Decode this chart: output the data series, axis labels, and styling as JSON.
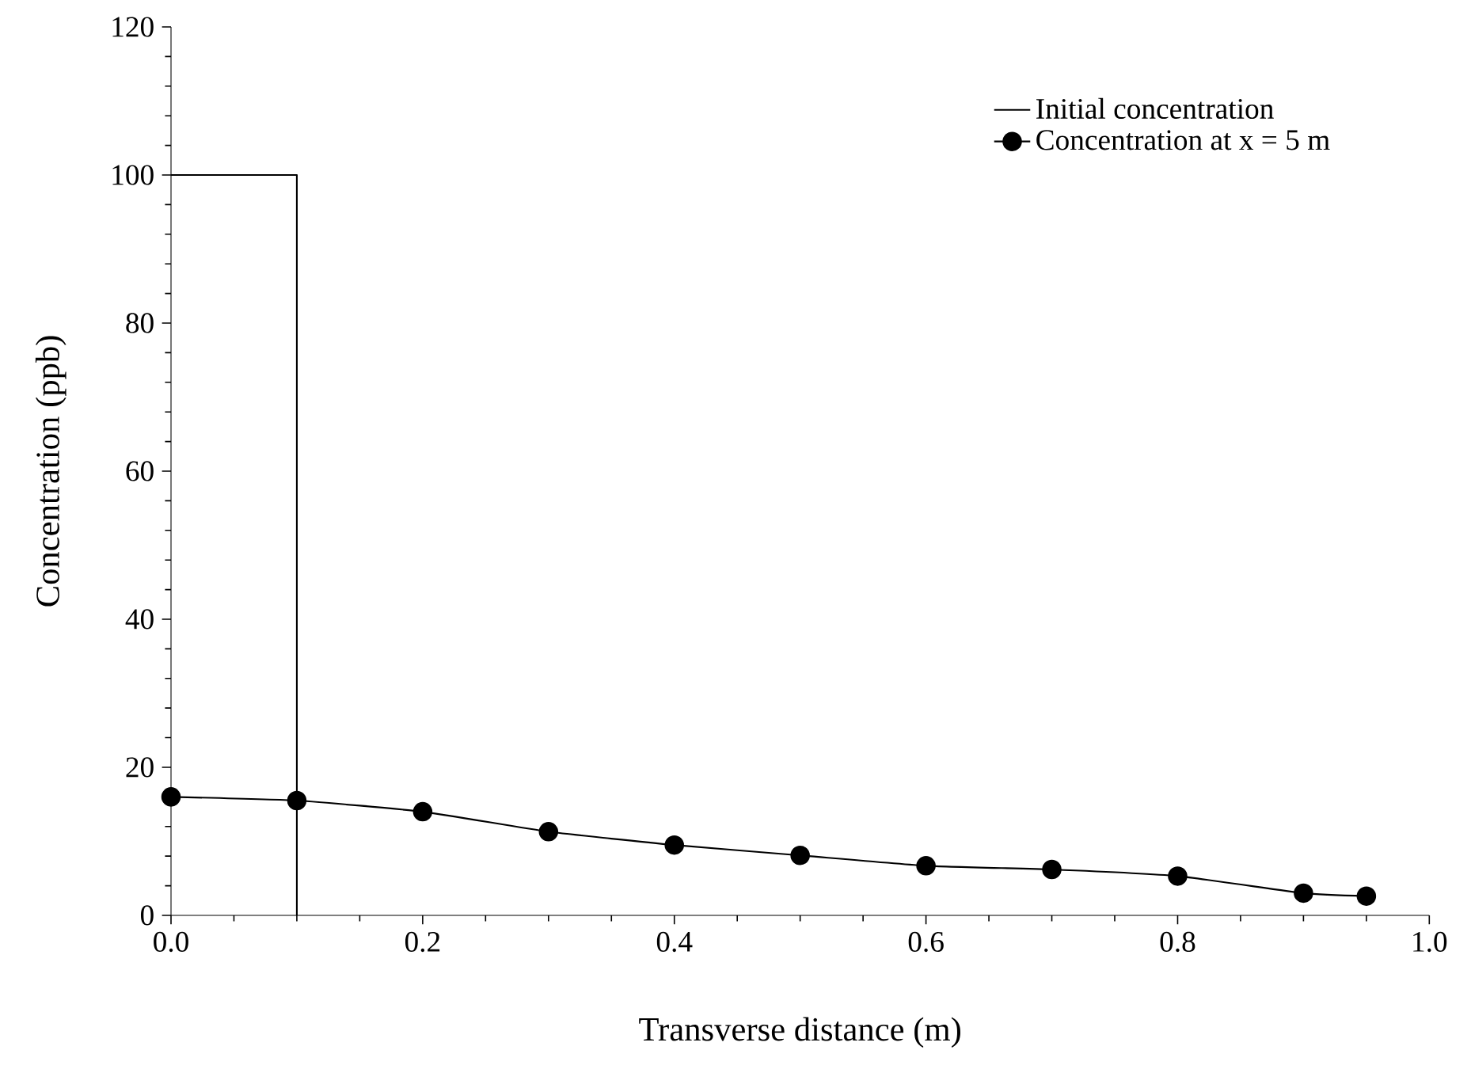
{
  "chart_data": {
    "type": "line",
    "xlabel": "Transverse distance (m)",
    "ylabel": "Concentration (ppb)",
    "xlim": [
      0,
      1
    ],
    "ylim": [
      0,
      120
    ],
    "xticks": [
      {
        "value": 0,
        "label": "0.0"
      },
      0.2,
      0.4,
      0.6,
      0.8,
      {
        "value": 1,
        "label": "1.0"
      }
    ],
    "yticks": [
      0,
      20,
      40,
      60,
      80,
      100,
      120
    ],
    "grid": false,
    "legend": "top right",
    "series": [
      {
        "name": "Initial concentration",
        "color": "#000000",
        "marker": "none",
        "x": [
          0,
          0.1,
          0.1
        ],
        "values": [
          100,
          100,
          0
        ]
      },
      {
        "name": "Concentration at x = 5 m",
        "color": "#000000",
        "marker": "circle",
        "x": [
          0,
          0.1,
          0.2,
          0.3,
          0.4,
          0.5,
          0.6,
          0.7,
          0.8,
          0.9,
          0.95
        ],
        "values": [
          16.0,
          15.5,
          14.0,
          11.3,
          9.5,
          8.1,
          6.7,
          6.2,
          5.3,
          3.0,
          2.6
        ]
      }
    ]
  }
}
